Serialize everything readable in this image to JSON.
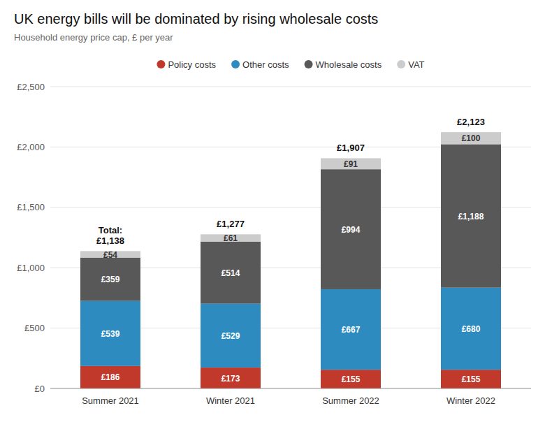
{
  "chart_data": {
    "type": "bar",
    "stacked": true,
    "title": "UK energy bills will be dominated by rising wholesale costs",
    "subtitle": "Household energy price cap, £ per year",
    "categories": [
      "Summer 2021",
      "Winter 2021",
      "Summer 2022",
      "Winter 2022"
    ],
    "series": [
      {
        "name": "Policy costs",
        "color": "#c0392b",
        "values": [
          186,
          173,
          155,
          155
        ],
        "value_labels": [
          "£186",
          "£173",
          "£155",
          "£155"
        ]
      },
      {
        "name": "Other costs",
        "color": "#2e8bc0",
        "values": [
          539,
          529,
          667,
          680
        ],
        "value_labels": [
          "£539",
          "£529",
          "£667",
          "£680"
        ]
      },
      {
        "name": "Wholesale costs",
        "color": "#585858",
        "values": [
          359,
          514,
          994,
          1188
        ],
        "value_labels": [
          "£359",
          "£514",
          "£994",
          "£1,188"
        ]
      },
      {
        "name": "VAT",
        "color": "#cccccc",
        "values": [
          54,
          61,
          91,
          100
        ],
        "value_labels": [
          "£54",
          "£61",
          "£91",
          "£100"
        ]
      }
    ],
    "totals": [
      1138,
      1277,
      1907,
      2123
    ],
    "totals_labels": [
      "Total:\n£1,138",
      "£1,277",
      "£1,907",
      "£2,123"
    ],
    "data_labels": true,
    "ylim": [
      0,
      2500
    ],
    "yticks": [
      {
        "value": 0,
        "label": "£0"
      },
      {
        "value": 500,
        "label": "£500"
      },
      {
        "value": 1000,
        "label": "£1,000"
      },
      {
        "value": 1500,
        "label": "£1,500"
      },
      {
        "value": 2000,
        "label": "£2,000"
      },
      {
        "value": 2500,
        "label": "£2,500"
      }
    ],
    "grid": true,
    "legend": "top"
  }
}
